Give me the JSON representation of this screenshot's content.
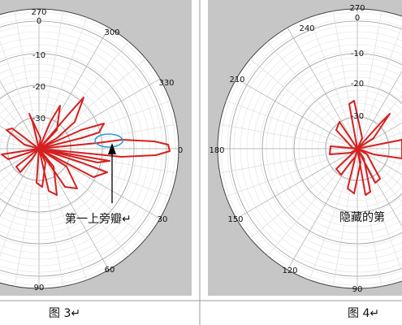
{
  "figures": [
    {
      "angle_labels": [
        "270",
        "300",
        "330",
        "0",
        "30",
        "60",
        "90"
      ],
      "radial_labels": [
        "0",
        "-10",
        "-20",
        "-30"
      ],
      "annotation": "第一上旁瓣↵",
      "caption": "图 3↵"
    },
    {
      "angle_labels": [
        "270",
        "240",
        "210",
        "180",
        "150",
        "120",
        "90"
      ],
      "radial_labels": [
        "0",
        "-10",
        "-20",
        "-30"
      ],
      "annotation": "隐藏的第",
      "caption": "图 4↵"
    }
  ]
}
